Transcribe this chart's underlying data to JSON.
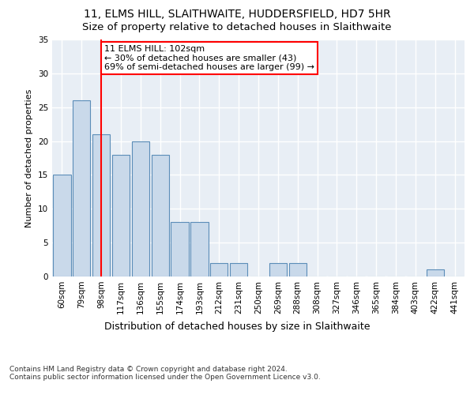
{
  "title1": "11, ELMS HILL, SLAITHWAITE, HUDDERSFIELD, HD7 5HR",
  "title2": "Size of property relative to detached houses in Slaithwaite",
  "xlabel": "Distribution of detached houses by size in Slaithwaite",
  "ylabel": "Number of detached properties",
  "bar_values": [
    15,
    26,
    21,
    18,
    20,
    18,
    8,
    8,
    2,
    2,
    0,
    2,
    2,
    0,
    0,
    0,
    0,
    0,
    0,
    1,
    0
  ],
  "bar_labels": [
    "60sqm",
    "79sqm",
    "98sqm",
    "117sqm",
    "136sqm",
    "155sqm",
    "174sqm",
    "193sqm",
    "212sqm",
    "231sqm",
    "250sqm",
    "269sqm",
    "288sqm",
    "308sqm",
    "327sqm",
    "346sqm",
    "365sqm",
    "384sqm",
    "403sqm",
    "422sqm",
    "441sqm"
  ],
  "bar_color": "#c9d9ea",
  "bar_edgecolor": "#5b8db8",
  "red_line_x": 2,
  "annotation_text": "11 ELMS HILL: 102sqm\n← 30% of detached houses are smaller (43)\n69% of semi-detached houses are larger (99) →",
  "annotation_box_color": "white",
  "annotation_box_edgecolor": "red",
  "vline_color": "red",
  "ylim": [
    0,
    35
  ],
  "yticks": [
    0,
    5,
    10,
    15,
    20,
    25,
    30,
    35
  ],
  "plot_bg_color": "#e8eef5",
  "grid_color": "white",
  "footnote": "Contains HM Land Registry data © Crown copyright and database right 2024.\nContains public sector information licensed under the Open Government Licence v3.0.",
  "title1_fontsize": 10,
  "title2_fontsize": 9.5,
  "xlabel_fontsize": 9,
  "ylabel_fontsize": 8,
  "tick_fontsize": 7.5,
  "annotation_fontsize": 8,
  "footnote_fontsize": 6.5
}
